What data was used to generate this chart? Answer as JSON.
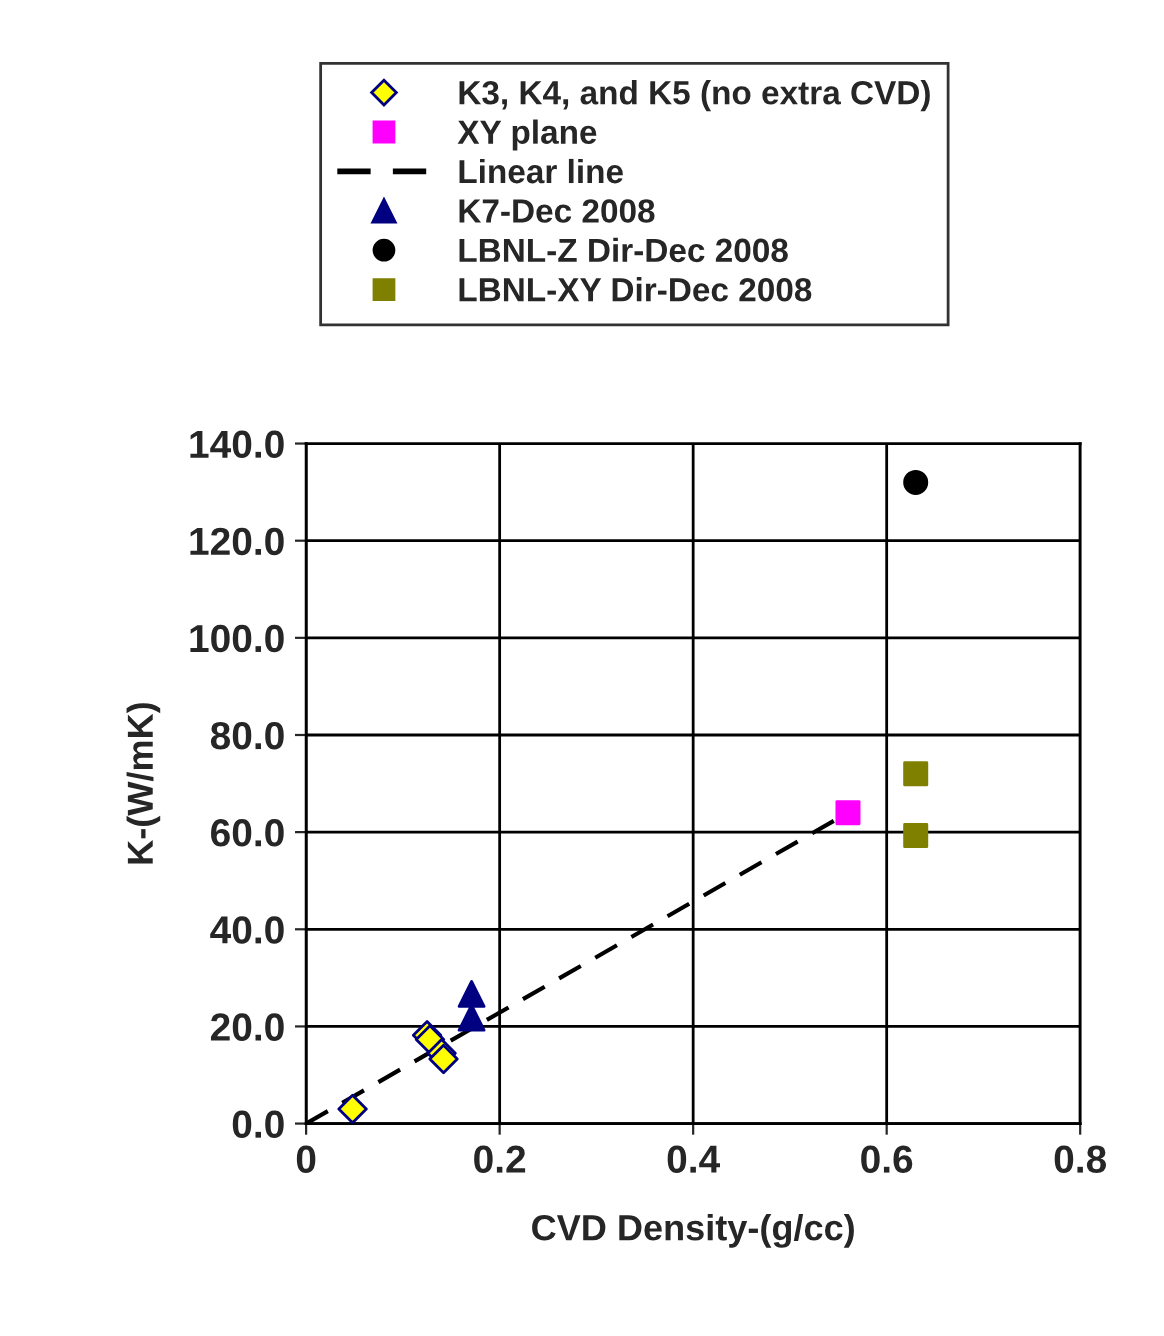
{
  "chart_data": {
    "type": "scatter",
    "xlabel": "CVD Density-(g/cc)",
    "ylabel": "K-(W/mK)",
    "xlim": [
      0,
      0.8
    ],
    "xticks": [
      0,
      {
        "value": 0.2,
        "label": "0.2"
      },
      {
        "value": 0.4,
        "label": "0.4"
      },
      {
        "value": 0.6,
        "label": "0.6"
      },
      {
        "value": 0.8,
        "label": "0.8"
      }
    ],
    "ylim": [
      0,
      140
    ],
    "yticks": [
      {
        "value": 0,
        "label": "0.0"
      },
      {
        "value": 20,
        "label": "20.0"
      },
      {
        "value": 40,
        "label": "40.0"
      },
      {
        "value": 60,
        "label": "60.0"
      },
      {
        "value": 80,
        "label": "80.0"
      },
      {
        "value": 100,
        "label": "100.0"
      },
      {
        "value": 120,
        "label": "120.0"
      },
      {
        "value": 140,
        "label": "140.0"
      }
    ],
    "grid": true,
    "legend": "top",
    "series": [
      {
        "name": "K3, K4, and K5 (no extra CVD)",
        "marker": "diamond",
        "color": "#ffff00",
        "x": [
          0.048,
          0.125,
          0.128,
          0.14,
          0.142
        ],
        "values": [
          3,
          18.2,
          17.3,
          14.5,
          13.3
        ]
      },
      {
        "name": "XY plane",
        "marker": "square",
        "color": "#ff00ff",
        "x": [
          0.56
        ],
        "values": [
          64
        ]
      },
      {
        "name": "Linear line",
        "type": "line",
        "marker": "none",
        "line_style": "dashed",
        "color": "#000000",
        "x": [
          0,
          0.56
        ],
        "values": [
          0,
          64
        ]
      },
      {
        "name": "K7-Dec 2008",
        "marker": "triangle",
        "color": "#000080",
        "x": [
          0.171,
          0.171
        ],
        "values": [
          26.7,
          21.8
        ]
      },
      {
        "name": "LBNL-Z Dir-Dec 2008",
        "marker": "circle",
        "color": "#000000",
        "x": [
          0.63
        ],
        "values": [
          132
        ]
      },
      {
        "name": "LBNL-XY Dir-Dec 2008",
        "marker": "square",
        "color": "#808000",
        "x": [
          0.63,
          0.63
        ],
        "values": [
          72,
          59.3
        ]
      }
    ]
  }
}
